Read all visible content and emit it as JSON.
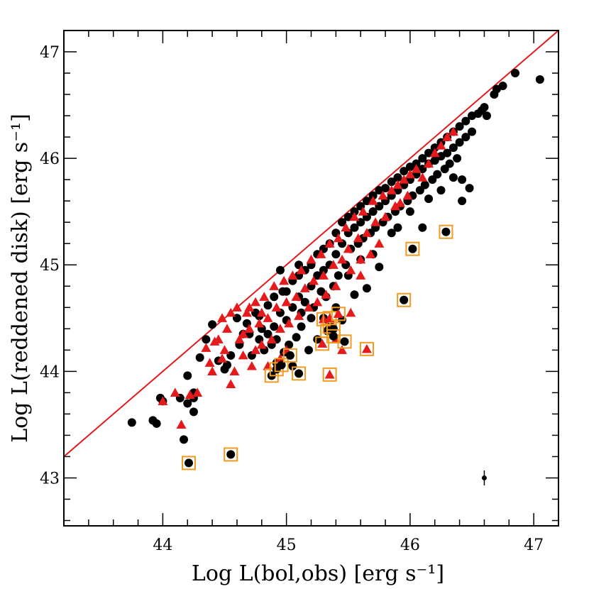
{
  "chart_data": {
    "type": "scatter",
    "title": "",
    "xlabel": "Log L(bol,obs) [erg s⁻¹]",
    "ylabel": "Log L(reddened disk) [erg s⁻¹]",
    "xlim": [
      43.2,
      47.2
    ],
    "ylim": [
      42.55,
      47.2
    ],
    "xticks": [
      "44",
      "45",
      "46",
      "47"
    ],
    "yticks": [
      "43",
      "44",
      "45",
      "46",
      "47"
    ],
    "reference_line": {
      "name": "one-to-one line",
      "x": [
        43.2,
        47.2
      ],
      "y": [
        43.2,
        47.2
      ],
      "color": "#e41a1c"
    },
    "error_bar": {
      "x": 46.6,
      "y": 43.0,
      "yerr": 0.07
    },
    "colors": {
      "circle": "#000000",
      "triangle": "#e41a1c",
      "box": "#f29a1f",
      "line": "#e41a1c"
    },
    "series": [
      {
        "name": "black circles",
        "marker": "circle",
        "color": "#000000",
        "points": [
          [
            43.75,
            43.52
          ],
          [
            43.92,
            43.54
          ],
          [
            43.95,
            43.51
          ],
          [
            43.98,
            43.75
          ],
          [
            44.0,
            43.72
          ],
          [
            44.14,
            43.75
          ],
          [
            44.17,
            43.36
          ],
          [
            44.2,
            43.96
          ],
          [
            44.2,
            43.7
          ],
          [
            44.25,
            43.75
          ],
          [
            44.25,
            43.62
          ],
          [
            44.25,
            43.8
          ],
          [
            44.3,
            44.13
          ],
          [
            44.4,
            44.44
          ],
          [
            44.45,
            44.1
          ],
          [
            44.5,
            44.02
          ],
          [
            44.52,
            44.06
          ],
          [
            44.6,
            44.5
          ],
          [
            44.62,
            44.25
          ],
          [
            44.65,
            44.35
          ],
          [
            44.7,
            44.35
          ],
          [
            44.75,
            44.55
          ],
          [
            44.78,
            44.3
          ],
          [
            44.8,
            44.4
          ],
          [
            44.82,
            44.2
          ],
          [
            44.85,
            44.62
          ],
          [
            44.85,
            44.35
          ],
          [
            44.9,
            44.7
          ],
          [
            44.9,
            44.42
          ],
          [
            44.92,
            44.3
          ],
          [
            44.95,
            44.95
          ],
          [
            44.95,
            44.55
          ],
          [
            44.97,
            44.75
          ],
          [
            45.0,
            44.75
          ],
          [
            45.0,
            44.48
          ],
          [
            45.02,
            44.25
          ],
          [
            45.05,
            44.85
          ],
          [
            45.05,
            44.6
          ],
          [
            45.08,
            44.32
          ],
          [
            45.1,
            44.9
          ],
          [
            45.1,
            44.7
          ],
          [
            45.12,
            44.55
          ],
          [
            45.15,
            44.95
          ],
          [
            45.15,
            44.65
          ],
          [
            45.2,
            45.0
          ],
          [
            45.2,
            44.8
          ],
          [
            45.22,
            44.6
          ],
          [
            45.25,
            45.1
          ],
          [
            45.25,
            44.9
          ],
          [
            45.28,
            44.75
          ],
          [
            45.3,
            45.15
          ],
          [
            45.3,
            44.95
          ],
          [
            45.32,
            44.7
          ],
          [
            45.35,
            45.2
          ],
          [
            45.35,
            45.0
          ],
          [
            45.38,
            44.8
          ],
          [
            45.4,
            45.3
          ],
          [
            45.4,
            45.1
          ],
          [
            45.42,
            44.9
          ],
          [
            45.45,
            45.4
          ],
          [
            45.45,
            45.2
          ],
          [
            45.48,
            45.0
          ],
          [
            45.5,
            45.45
          ],
          [
            45.5,
            45.3
          ],
          [
            45.52,
            45.15
          ],
          [
            45.55,
            45.5
          ],
          [
            45.55,
            45.35
          ],
          [
            45.58,
            45.2
          ],
          [
            45.6,
            45.55
          ],
          [
            45.6,
            45.4
          ],
          [
            45.62,
            45.25
          ],
          [
            45.65,
            45.6
          ],
          [
            45.65,
            45.45
          ],
          [
            45.68,
            45.3
          ],
          [
            45.7,
            45.65
          ],
          [
            45.7,
            45.5
          ],
          [
            45.72,
            45.35
          ],
          [
            45.75,
            45.7
          ],
          [
            45.75,
            45.55
          ],
          [
            45.78,
            45.4
          ],
          [
            45.8,
            45.72
          ],
          [
            45.8,
            45.6
          ],
          [
            45.82,
            45.45
          ],
          [
            45.85,
            45.78
          ],
          [
            45.85,
            45.65
          ],
          [
            45.88,
            45.5
          ],
          [
            45.9,
            45.82
          ],
          [
            45.9,
            45.7
          ],
          [
            45.92,
            45.55
          ],
          [
            45.95,
            45.88
          ],
          [
            45.95,
            45.75
          ],
          [
            45.98,
            45.6
          ],
          [
            46.0,
            45.92
          ],
          [
            46.0,
            45.8
          ],
          [
            46.02,
            45.65
          ],
          [
            46.05,
            45.95
          ],
          [
            46.05,
            45.85
          ],
          [
            46.08,
            45.7
          ],
          [
            46.1,
            46.0
          ],
          [
            46.1,
            45.9
          ],
          [
            46.12,
            45.75
          ],
          [
            46.15,
            46.05
          ],
          [
            46.15,
            45.95
          ],
          [
            46.18,
            45.8
          ],
          [
            46.2,
            46.1
          ],
          [
            46.2,
            45.98
          ],
          [
            46.22,
            45.85
          ],
          [
            46.25,
            46.15
          ],
          [
            46.25,
            46.02
          ],
          [
            46.28,
            45.9
          ],
          [
            46.3,
            46.2
          ],
          [
            46.3,
            46.05
          ],
          [
            46.32,
            45.95
          ],
          [
            46.35,
            46.25
          ],
          [
            46.35,
            46.1
          ],
          [
            46.38,
            46.0
          ],
          [
            46.4,
            46.3
          ],
          [
            46.4,
            46.15
          ],
          [
            46.42,
            45.6
          ],
          [
            46.42,
            45.8
          ],
          [
            46.45,
            46.35
          ],
          [
            46.45,
            46.2
          ],
          [
            46.48,
            45.72
          ],
          [
            46.5,
            46.4
          ],
          [
            46.5,
            46.25
          ],
          [
            46.55,
            46.42
          ],
          [
            46.58,
            46.45
          ],
          [
            46.6,
            46.48
          ],
          [
            46.62,
            46.4
          ],
          [
            46.68,
            46.6
          ],
          [
            46.7,
            46.65
          ],
          [
            46.75,
            46.68
          ],
          [
            46.85,
            46.8
          ],
          [
            47.05,
            46.74
          ],
          [
            45.1,
            45.0
          ],
          [
            45.3,
            44.5
          ],
          [
            45.4,
            44.6
          ],
          [
            45.5,
            44.9
          ],
          [
            45.6,
            45.05
          ],
          [
            45.7,
            45.1
          ],
          [
            45.75,
            44.98
          ],
          [
            45.85,
            45.3
          ],
          [
            45.9,
            45.35
          ],
          [
            46.0,
            45.5
          ],
          [
            46.1,
            45.35
          ],
          [
            46.15,
            45.62
          ],
          [
            46.25,
            45.7
          ],
          [
            46.35,
            45.82
          ],
          [
            45.2,
            44.5
          ],
          [
            45.25,
            44.3
          ],
          [
            45.35,
            44.45
          ],
          [
            44.92,
            44.08
          ],
          [
            44.98,
            44.18
          ],
          [
            44.88,
            44.25
          ],
          [
            45.05,
            44.05
          ],
          [
            45.12,
            44.42
          ],
          [
            44.35,
            44.3
          ],
          [
            44.55,
            44.15
          ],
          [
            44.72,
            44.15
          ],
          [
            44.68,
            44.45
          ],
          [
            44.78,
            44.52
          ],
          [
            45.18,
            44.2
          ],
          [
            45.45,
            44.48
          ],
          [
            45.55,
            44.72
          ],
          [
            45.65,
            44.78
          ]
        ]
      },
      {
        "name": "red triangles",
        "marker": "triangle",
        "color": "#e41a1c",
        "points": [
          [
            44.0,
            43.72
          ],
          [
            44.1,
            43.8
          ],
          [
            44.15,
            43.5
          ],
          [
            44.22,
            43.78
          ],
          [
            44.28,
            43.8
          ],
          [
            44.35,
            44.22
          ],
          [
            44.4,
            44.0
          ],
          [
            44.45,
            44.3
          ],
          [
            44.48,
            44.5
          ],
          [
            44.5,
            44.2
          ],
          [
            44.55,
            43.88
          ],
          [
            44.58,
            44.0
          ],
          [
            44.6,
            44.6
          ],
          [
            44.62,
            44.3
          ],
          [
            44.65,
            44.15
          ],
          [
            44.68,
            44.55
          ],
          [
            44.7,
            44.4
          ],
          [
            44.72,
            44.05
          ],
          [
            44.75,
            44.65
          ],
          [
            44.78,
            44.45
          ],
          [
            44.8,
            44.25
          ],
          [
            44.82,
            44.7
          ],
          [
            44.85,
            44.5
          ],
          [
            44.88,
            44.3
          ],
          [
            44.9,
            44.8
          ],
          [
            44.92,
            44.6
          ],
          [
            44.95,
            44.4
          ],
          [
            44.98,
            44.85
          ],
          [
            45.0,
            44.65
          ],
          [
            45.02,
            44.45
          ],
          [
            45.05,
            44.9
          ],
          [
            45.08,
            44.7
          ],
          [
            45.1,
            44.52
          ],
          [
            45.12,
            44.95
          ],
          [
            45.15,
            44.78
          ],
          [
            45.18,
            44.6
          ],
          [
            45.2,
            45.05
          ],
          [
            45.22,
            44.85
          ],
          [
            45.25,
            44.65
          ],
          [
            45.28,
            45.1
          ],
          [
            45.3,
            44.9
          ],
          [
            45.32,
            44.72
          ],
          [
            45.35,
            45.2
          ],
          [
            45.38,
            45.0
          ],
          [
            45.4,
            44.8
          ],
          [
            45.42,
            45.25
          ],
          [
            45.45,
            45.05
          ],
          [
            45.48,
            45.35
          ],
          [
            45.5,
            45.15
          ],
          [
            45.52,
            44.95
          ],
          [
            45.55,
            45.45
          ],
          [
            45.58,
            45.25
          ],
          [
            45.6,
            45.05
          ],
          [
            45.62,
            45.5
          ],
          [
            45.65,
            45.3
          ],
          [
            45.68,
            45.1
          ],
          [
            45.7,
            45.6
          ],
          [
            45.72,
            45.4
          ],
          [
            45.75,
            45.2
          ],
          [
            45.78,
            45.65
          ],
          [
            45.8,
            45.45
          ],
          [
            45.85,
            45.7
          ],
          [
            45.88,
            45.55
          ],
          [
            45.9,
            45.75
          ],
          [
            45.95,
            45.8
          ],
          [
            45.98,
            45.65
          ],
          [
            46.0,
            45.85
          ],
          [
            46.05,
            45.9
          ],
          [
            46.1,
            45.82
          ],
          [
            46.15,
            45.95
          ],
          [
            46.2,
            46.05
          ],
          [
            46.25,
            46.12
          ],
          [
            46.3,
            46.2
          ],
          [
            46.35,
            46.25
          ],
          [
            45.92,
            45.58
          ],
          [
            45.45,
            44.2
          ],
          [
            45.52,
            44.55
          ],
          [
            45.4,
            44.3
          ],
          [
            45.6,
            44.9
          ],
          [
            44.55,
            44.55
          ],
          [
            44.52,
            44.4
          ],
          [
            44.42,
            44.28
          ],
          [
            44.38,
            44.08
          ],
          [
            44.48,
            44.12
          ],
          [
            44.65,
            44.35
          ],
          [
            44.75,
            44.2
          ],
          [
            44.85,
            44.05
          ],
          [
            44.95,
            44.12
          ],
          [
            45.0,
            44.2
          ],
          [
            44.7,
            44.6
          ],
          [
            44.8,
            44.55
          ]
        ]
      },
      {
        "name": "boxed circles",
        "marker": "boxed-circle",
        "color": "#000000",
        "box_color": "#f29a1f",
        "points": [
          [
            44.21,
            43.14
          ],
          [
            44.55,
            43.22
          ],
          [
            44.88,
            43.96
          ],
          [
            44.92,
            44.02
          ],
          [
            44.96,
            44.06
          ],
          [
            45.03,
            44.15
          ],
          [
            45.1,
            43.98
          ],
          [
            45.33,
            44.38
          ],
          [
            45.35,
            44.42
          ],
          [
            45.38,
            44.4
          ],
          [
            45.38,
            44.33
          ],
          [
            45.47,
            44.28
          ],
          [
            45.95,
            44.67
          ],
          [
            46.02,
            45.15
          ],
          [
            46.29,
            45.31
          ]
        ]
      },
      {
        "name": "boxed triangles",
        "marker": "boxed-triangle",
        "color": "#e41a1c",
        "box_color": "#f29a1f",
        "points": [
          [
            45.29,
            44.26
          ],
          [
            45.3,
            44.49
          ],
          [
            45.35,
            43.97
          ],
          [
            45.35,
            44.5
          ],
          [
            45.42,
            44.54
          ],
          [
            45.65,
            44.21
          ]
        ]
      }
    ]
  }
}
